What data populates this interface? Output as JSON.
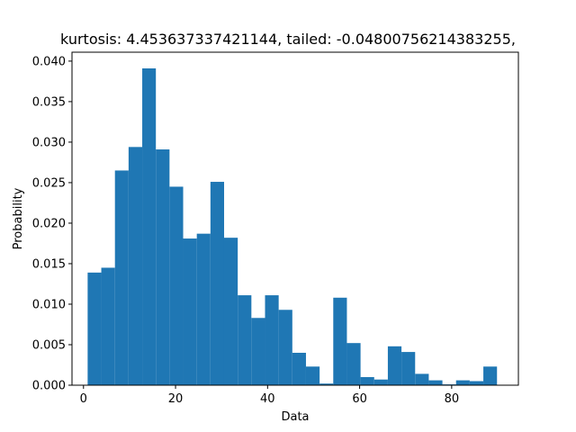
{
  "chart_data": {
    "type": "bar",
    "title": "kurtosis: 4.453637337421144, tailed: -0.04800756214383255,",
    "xlabel": "Data",
    "ylabel": "Probability",
    "xlim": [
      -2.5,
      94.5
    ],
    "ylim": [
      0,
      0.0411
    ],
    "xticks": [
      0,
      20,
      40,
      60,
      80
    ],
    "xtick_labels": [
      "0",
      "20",
      "40",
      "60",
      "80"
    ],
    "yticks": [
      0.0,
      0.005,
      0.01,
      0.015,
      0.02,
      0.025,
      0.03,
      0.035,
      0.04
    ],
    "ytick_labels": [
      "0.000",
      "0.005",
      "0.010",
      "0.015",
      "0.020",
      "0.025",
      "0.030",
      "0.035",
      "0.040"
    ],
    "grid": false,
    "bar_color": "#1f77b4",
    "bin_start": 0.9,
    "bin_width": 2.965,
    "values": [
      0.0139,
      0.0145,
      0.0265,
      0.0294,
      0.0391,
      0.0291,
      0.0245,
      0.0181,
      0.0187,
      0.0251,
      0.0182,
      0.0111,
      0.0083,
      0.0111,
      0.0093,
      0.004,
      0.0023,
      0.0002,
      0.0108,
      0.0052,
      0.001,
      0.0007,
      0.0048,
      0.0041,
      0.0014,
      0.0006,
      0.0001,
      0.0006,
      0.0005,
      0.0023
    ]
  }
}
